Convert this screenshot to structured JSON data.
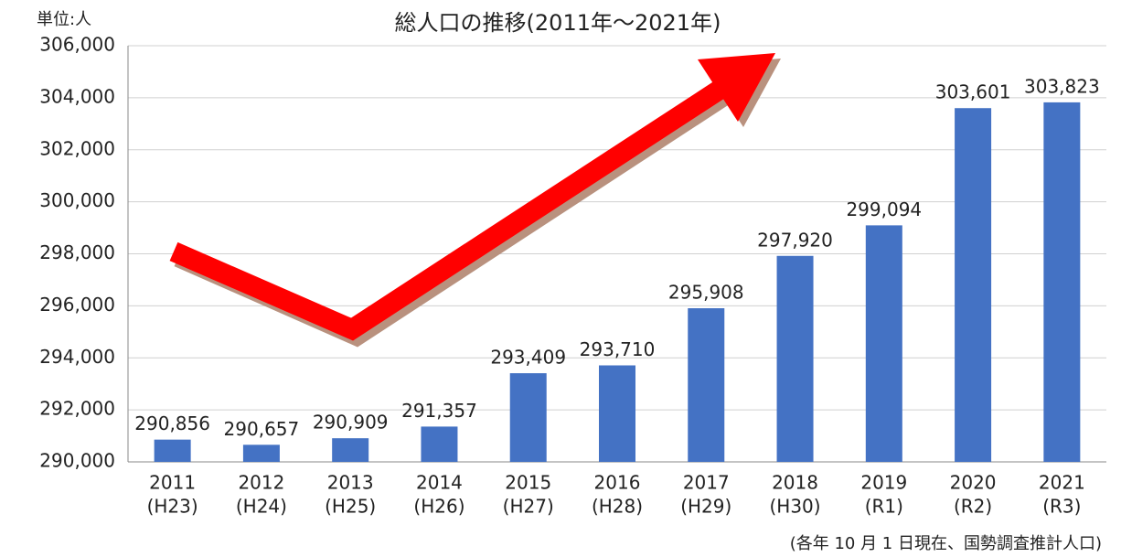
{
  "chart_data": {
    "type": "bar",
    "title": "総人口の推移(2011年～2021年)",
    "unit_label": "単位:人",
    "footnote": "(各年 10 月 1 日現在、国勢調査推計人口)",
    "categories": [
      "2011",
      "2012",
      "2013",
      "2014",
      "2015",
      "2016",
      "2017",
      "2018",
      "2019",
      "2020",
      "2021"
    ],
    "category_eras": [
      "(H23)",
      "(H24)",
      "(H25)",
      "(H26)",
      "(H27)",
      "(H28)",
      "(H29)",
      "(H30)",
      "(R1)",
      "(R2)",
      "(R3)"
    ],
    "values": [
      290856,
      290657,
      290909,
      291357,
      293409,
      293710,
      295908,
      297920,
      299094,
      303601,
      303823
    ],
    "value_labels": [
      "290,856",
      "290,657",
      "290,909",
      "291,357",
      "293,409",
      "293,710",
      "295,908",
      "297,920",
      "299,094",
      "303,601",
      "303,823"
    ],
    "color": "#4472c4",
    "ylim": [
      290000,
      306000
    ],
    "yticks": [
      {
        "value": 290000,
        "label": "290,000"
      },
      {
        "value": 292000,
        "label": "292,000"
      },
      {
        "value": 294000,
        "label": "294,000"
      },
      {
        "value": 296000,
        "label": "296,000"
      },
      {
        "value": 298000,
        "label": "298,000"
      },
      {
        "value": 300000,
        "label": "300,000"
      },
      {
        "value": 302000,
        "label": "302,000"
      },
      {
        "value": 304000,
        "label": "304,000"
      },
      {
        "value": 306000,
        "label": "306,000"
      }
    ],
    "grid": true
  }
}
